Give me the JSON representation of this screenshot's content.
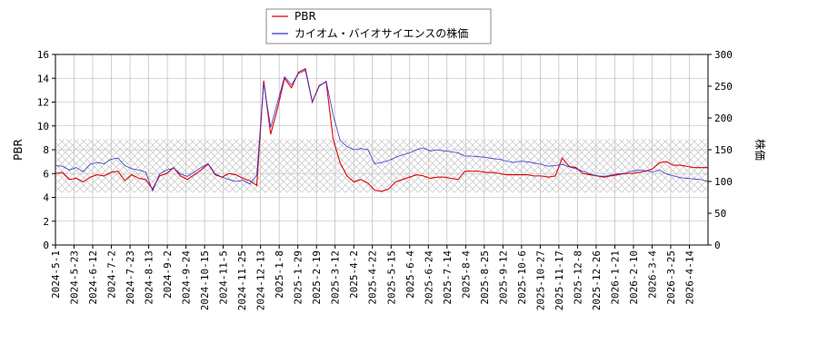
{
  "colors": {
    "pbr": "#dd0000",
    "price": "#3333cc",
    "grid": "#b0b0b0",
    "band_stroke": "#c0c0c0"
  },
  "chart_data": {
    "type": "line",
    "x_tick_labels": [
      "2024-5-1",
      "2024-5-23",
      "2024-6-12",
      "2024-7-2",
      "2024-7-23",
      "2024-8-13",
      "2024-9-2",
      "2024-9-24",
      "2024-10-15",
      "2024-11-5",
      "2024-11-25",
      "2024-12-13",
      "2025-1-8",
      "2025-1-29",
      "2025-2-19",
      "2025-3-12",
      "2025-4-2",
      "2025-4-22",
      "2025-5-15",
      "2025-6-4",
      "2025-6-24",
      "2025-7-14",
      "2025-8-4",
      "2025-8-25",
      "2025-9-12",
      "2025-10-6",
      "2025-10-27",
      "2025-11-17",
      "2025-12-8",
      "2025-12-26",
      "2026-1-21",
      "2026-2-10",
      "2026-3-4",
      "2026-3-25",
      "2026-4-14"
    ],
    "ylabel_left": "PBR",
    "ylabel_right": "株価",
    "ylim_left": [
      0,
      16
    ],
    "yticks_left": [
      "0",
      "2",
      "4",
      "6",
      "8",
      "10",
      "12",
      "14",
      "16"
    ],
    "ylim_right": [
      0,
      300
    ],
    "yticks_right": [
      "0",
      "50",
      "100",
      "150",
      "200",
      "250",
      "300"
    ],
    "band_left": [
      4.4,
      8.9
    ],
    "grid": true,
    "legend_position": "top-center",
    "series": [
      {
        "name": "PBR",
        "axis": "left",
        "values": [
          6.0,
          6.1,
          5.5,
          5.6,
          5.3,
          5.7,
          5.9,
          5.8,
          6.1,
          6.2,
          5.4,
          5.9,
          5.6,
          5.5,
          4.7,
          5.8,
          6.0,
          6.5,
          5.8,
          5.5,
          5.9,
          6.3,
          6.8,
          5.9,
          5.7,
          6.0,
          5.9,
          5.6,
          5.4,
          5.0,
          13.8,
          9.3,
          11.5,
          14.0,
          13.2,
          14.5,
          14.8,
          12.0,
          13.4,
          13.7,
          8.9,
          6.9,
          5.8,
          5.3,
          5.5,
          5.2,
          4.6,
          4.5,
          4.7,
          5.3,
          5.5,
          5.7,
          5.9,
          5.8,
          5.6,
          5.7,
          5.7,
          5.6,
          5.5,
          6.2,
          6.2,
          6.2,
          6.1,
          6.1,
          6.0,
          5.9,
          5.9,
          5.9,
          5.9,
          5.8,
          5.8,
          5.7,
          5.8,
          7.3,
          6.6,
          6.5,
          6.0,
          5.9,
          5.8,
          5.7,
          5.8,
          5.9,
          6.0,
          6.0,
          6.1,
          6.2,
          6.4,
          6.9,
          7.0,
          6.7,
          6.7,
          6.6,
          6.5,
          6.5,
          6.5
        ],
        "x_positions": [
          0,
          1,
          2,
          3,
          4,
          5,
          6,
          7,
          8,
          9,
          10,
          11,
          12,
          13,
          14,
          15,
          16,
          17,
          18,
          19,
          20,
          21,
          22,
          23,
          24,
          25,
          26,
          27,
          28,
          29,
          30,
          31,
          32,
          33,
          34,
          35,
          36,
          37,
          38,
          39,
          40,
          41,
          42,
          43,
          44,
          45,
          46,
          47,
          48,
          49,
          50,
          51,
          52,
          53,
          54,
          55,
          56,
          57,
          58,
          59,
          60,
          61,
          62,
          63,
          64,
          65,
          66,
          67,
          68,
          69,
          70,
          71,
          72,
          73,
          74,
          75,
          76,
          77,
          78,
          79,
          80,
          81,
          82,
          83,
          84,
          85,
          86,
          87,
          88,
          89,
          90,
          91,
          92,
          93,
          94
        ]
      },
      {
        "name": "カイオム・バイオサイエンスの株価",
        "axis": "right",
        "values": [
          125,
          124,
          118,
          122,
          115,
          127,
          130,
          128,
          135,
          137,
          125,
          120,
          118,
          115,
          85,
          112,
          118,
          121,
          112,
          108,
          115,
          122,
          128,
          112,
          107,
          103,
          100,
          102,
          96,
          110,
          255,
          185,
          225,
          265,
          252,
          270,
          275,
          225,
          250,
          258,
          205,
          165,
          155,
          150,
          152,
          150,
          128,
          130,
          133,
          138,
          142,
          145,
          150,
          153,
          148,
          150,
          148,
          147,
          145,
          140,
          140,
          139,
          138,
          136,
          135,
          132,
          130,
          132,
          131,
          129,
          127,
          124,
          125,
          127,
          123,
          120,
          116,
          112,
          109,
          108,
          110,
          112,
          113,
          116,
          118,
          117,
          115,
          118,
          112,
          109,
          106,
          105,
          104,
          103,
          100
        ],
        "x_positions": [
          0,
          1,
          2,
          3,
          4,
          5,
          6,
          7,
          8,
          9,
          10,
          11,
          12,
          13,
          14,
          15,
          16,
          17,
          18,
          19,
          20,
          21,
          22,
          23,
          24,
          25,
          26,
          27,
          28,
          29,
          30,
          31,
          32,
          33,
          34,
          35,
          36,
          37,
          38,
          39,
          40,
          41,
          42,
          43,
          44,
          45,
          46,
          47,
          48,
          49,
          50,
          51,
          52,
          53,
          54,
          55,
          56,
          57,
          58,
          59,
          60,
          61,
          62,
          63,
          64,
          65,
          66,
          67,
          68,
          69,
          70,
          71,
          72,
          73,
          74,
          75,
          76,
          77,
          78,
          79,
          80,
          81,
          82,
          83,
          84,
          85,
          86,
          87,
          88,
          89,
          90,
          91,
          92,
          93,
          94
        ]
      }
    ]
  }
}
